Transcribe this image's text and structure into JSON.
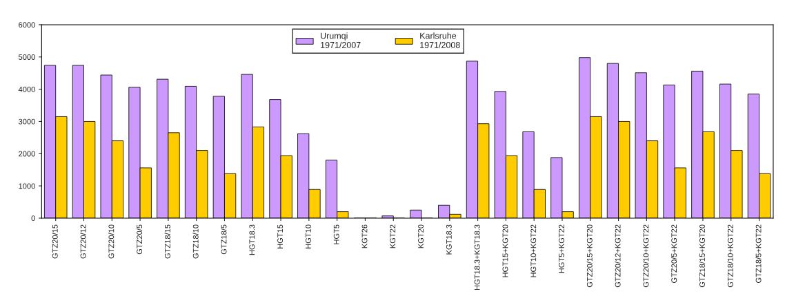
{
  "chart_data": {
    "type": "bar",
    "categories": [
      "GTZ20/15",
      "GTZ20/12",
      "GTZ20/10",
      "GTZ20/5",
      "GTZ18/15",
      "GTZ18/10",
      "GTZ18/5",
      "HGT18.3",
      "HGT15",
      "HGT10",
      "HGT5",
      "KGT26",
      "KGT22",
      "KGT20",
      "KGT18.3",
      "HGT18.3+KGT18.3",
      "HGT15+KGT20",
      "HGT10+KGT22",
      "HGT5+KGT22",
      "GTZ20/15+KGT20",
      "GTZ20/12+KGT22",
      "GTZ20/10+KGT22",
      "GTZ20/5+KGT22",
      "GTZ18/15+KGT20",
      "GTZ18/10+KGT22",
      "GTZ18/5+KGT22"
    ],
    "series": [
      {
        "name": "Urumqi\n1971/2007",
        "color": "#cc99ff",
        "values": [
          4740,
          4740,
          4440,
          4060,
          4310,
          4090,
          3780,
          4460,
          3680,
          2620,
          1800,
          0,
          70,
          250,
          400,
          4870,
          3930,
          2680,
          1880,
          4980,
          4800,
          4510,
          4130,
          4560,
          4160,
          3850
        ]
      },
      {
        "name": "Karlsruhe\n1971/2008",
        "color": "#ffcc00",
        "values": [
          3150,
          3000,
          2400,
          1560,
          2650,
          2100,
          1380,
          2830,
          1940,
          890,
          200,
          0,
          0,
          0,
          120,
          2930,
          1940,
          890,
          200,
          3150,
          3000,
          2400,
          1560,
          2680,
          2100,
          1380
        ]
      }
    ],
    "ylim": [
      0,
      6000
    ],
    "yticks": [
      0,
      1000,
      2000,
      3000,
      4000,
      5000,
      6000
    ],
    "grid": false,
    "legend": "top"
  }
}
